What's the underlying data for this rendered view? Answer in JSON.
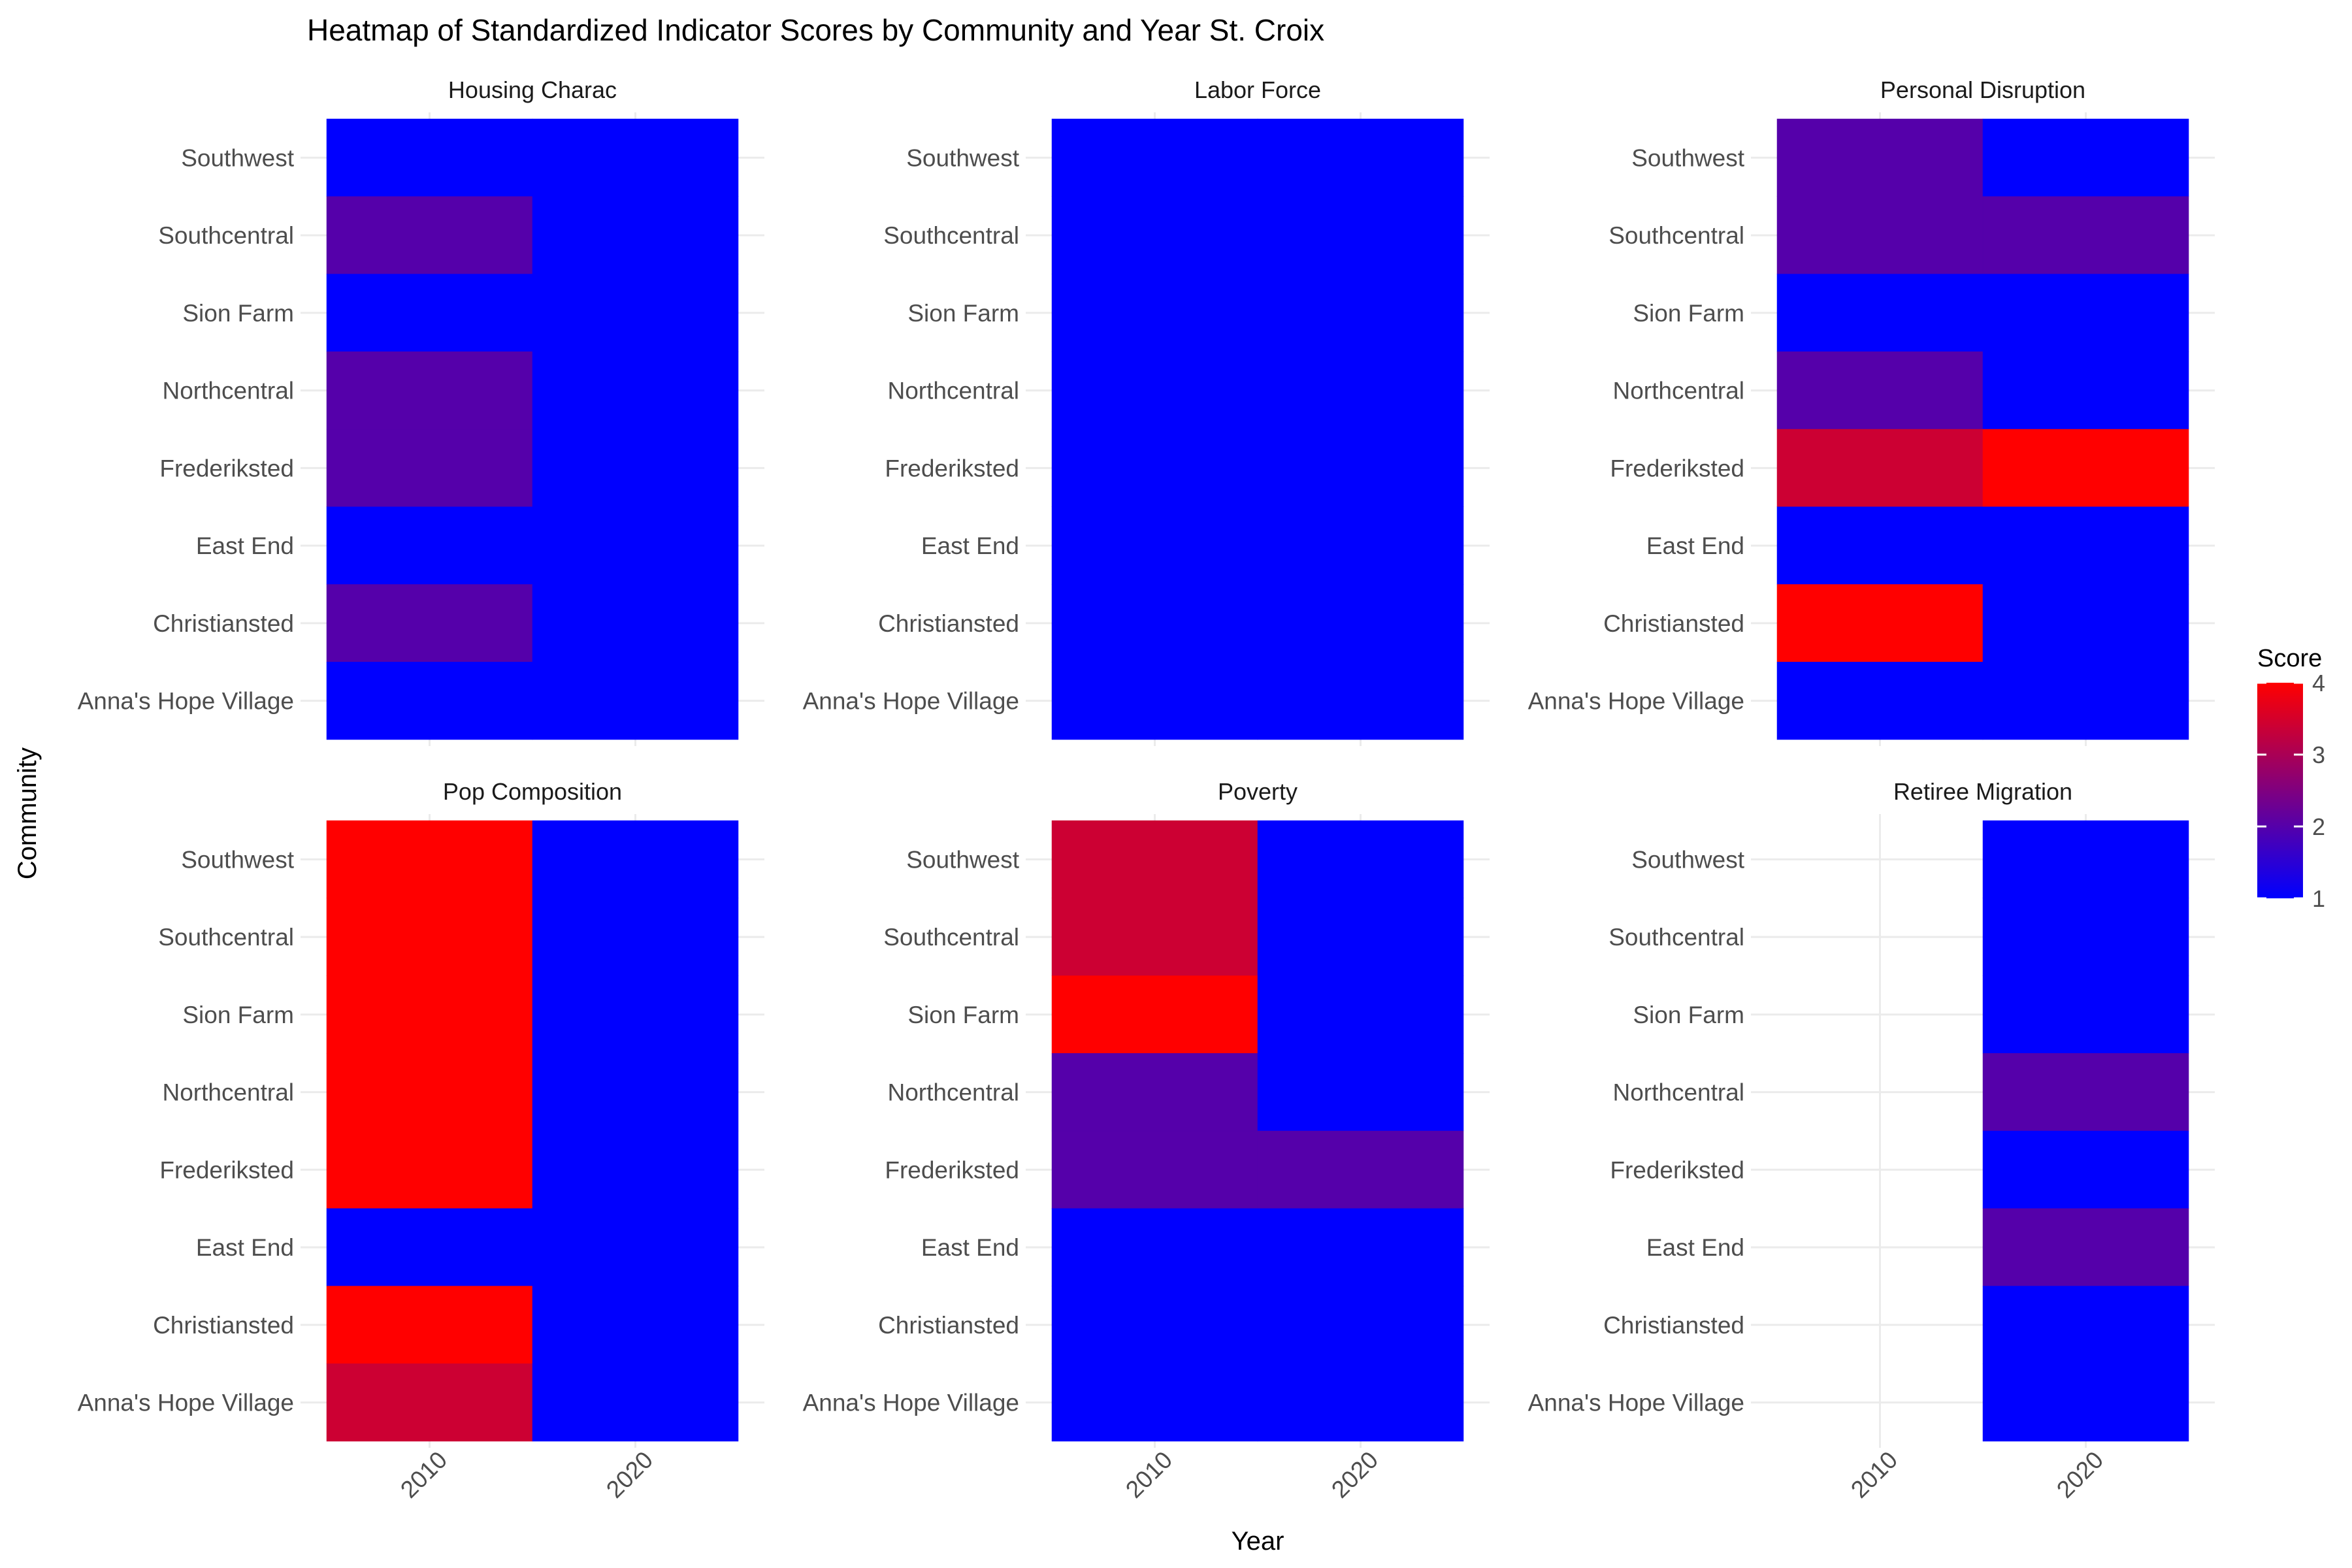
{
  "chart_data": {
    "type": "heatmap",
    "title": "Heatmap of Standardized Indicator Scores by Community and Year St. Croix",
    "xlabel": "Year",
    "ylabel": "Community",
    "x": [
      "2010",
      "2020"
    ],
    "y_bottom_to_top": [
      "Anna's Hope Village",
      "Christiansted",
      "East End",
      "Frederiksted",
      "Northcentral",
      "Sion Farm",
      "Southcentral",
      "Southwest"
    ],
    "panels": [
      {
        "name": "Housing Charac",
        "values": {
          "Southwest": [
            1,
            1
          ],
          "Southcentral": [
            2,
            1
          ],
          "Sion Farm": [
            1,
            1
          ],
          "Northcentral": [
            2,
            1
          ],
          "Frederiksted": [
            2,
            1
          ],
          "East End": [
            1,
            1
          ],
          "Christiansted": [
            2,
            1
          ],
          "Anna's Hope Village": [
            1,
            1
          ]
        }
      },
      {
        "name": "Labor Force",
        "values": {
          "Southwest": [
            1,
            1
          ],
          "Southcentral": [
            1,
            1
          ],
          "Sion Farm": [
            1,
            1
          ],
          "Northcentral": [
            1,
            1
          ],
          "Frederiksted": [
            1,
            1
          ],
          "East End": [
            1,
            1
          ],
          "Christiansted": [
            1,
            1
          ],
          "Anna's Hope Village": [
            1,
            1
          ]
        }
      },
      {
        "name": "Personal Disruption",
        "values": {
          "Southwest": [
            2,
            1
          ],
          "Southcentral": [
            2,
            2
          ],
          "Sion Farm": [
            1,
            1
          ],
          "Northcentral": [
            2,
            1
          ],
          "Frederiksted": [
            3.4,
            4
          ],
          "East End": [
            1,
            1
          ],
          "Christiansted": [
            4,
            1
          ],
          "Anna's Hope Village": [
            1,
            1
          ]
        }
      },
      {
        "name": "Pop Composition",
        "values": {
          "Southwest": [
            4,
            1
          ],
          "Southcentral": [
            4,
            1
          ],
          "Sion Farm": [
            4,
            1
          ],
          "Northcentral": [
            4,
            1
          ],
          "Frederiksted": [
            4,
            1
          ],
          "East End": [
            1,
            1
          ],
          "Christiansted": [
            4,
            1
          ],
          "Anna's Hope Village": [
            3.4,
            1
          ]
        }
      },
      {
        "name": "Poverty",
        "values": {
          "Southwest": [
            3.4,
            1
          ],
          "Southcentral": [
            3.4,
            1
          ],
          "Sion Farm": [
            4,
            1
          ],
          "Northcentral": [
            2,
            1
          ],
          "Frederiksted": [
            2,
            2
          ],
          "East End": [
            1,
            1
          ],
          "Christiansted": [
            1,
            1
          ],
          "Anna's Hope Village": [
            1,
            1
          ]
        }
      },
      {
        "name": "Retiree Migration",
        "values": {
          "Southwest": [
            null,
            1
          ],
          "Southcentral": [
            null,
            1
          ],
          "Sion Farm": [
            null,
            1
          ],
          "Northcentral": [
            null,
            2
          ],
          "Frederiksted": [
            null,
            1
          ],
          "East End": [
            null,
            2
          ],
          "Christiansted": [
            null,
            1
          ],
          "Anna's Hope Village": [
            null,
            1
          ]
        }
      }
    ],
    "legend": {
      "title": "Score",
      "ticks": [
        1,
        2,
        3,
        4
      ],
      "min": 1,
      "max": 4,
      "low_color": "#0000ff",
      "high_color": "#ff0000",
      "placement": "right"
    },
    "grid": true,
    "layout": "2x3 facets"
  }
}
